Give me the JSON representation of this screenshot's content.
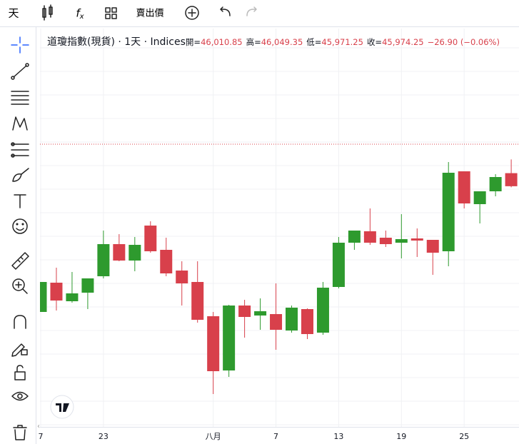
{
  "toolbar": {
    "interval": "天",
    "price_type": "賣出價"
  },
  "chart_data": {
    "type": "candlestick",
    "title": "道瓊指數(現貨) · 1天 · Indices",
    "ohlc_legend": {
      "labels": [
        "開=",
        "高=",
        "低=",
        "收="
      ],
      "values": [
        "46,010.85",
        "46,049.35",
        "45,971.25",
        "45,974.25"
      ],
      "change": "−26.90 (−0.06%)"
    },
    "categories": [
      "7",
      null,
      null,
      null,
      "23",
      null,
      null,
      null,
      null,
      null,
      null,
      "八月",
      null,
      null,
      null,
      "7",
      null,
      null,
      null,
      "13",
      null,
      null,
      null,
      "19",
      null,
      null,
      null,
      "25",
      null,
      null,
      null
    ],
    "open": [
      45622,
      45704,
      45652,
      45676,
      45722,
      45812,
      45766,
      45864,
      45796,
      45738,
      45706,
      45610,
      45458,
      45640,
      45612,
      45616,
      45570,
      45630,
      45564,
      45692,
      45816,
      45848,
      45830,
      45816,
      45828,
      45824,
      45792,
      46016,
      45924,
      45960,
      46010.85
    ],
    "high": [
      45706,
      45746,
      45734,
      45716,
      45850,
      45840,
      45832,
      45876,
      45830,
      45764,
      45764,
      45622,
      45642,
      45656,
      45660,
      45702,
      45640,
      45632,
      45706,
      45832,
      45850,
      45912,
      45850,
      45896,
      45856,
      45824,
      46042,
      46016,
      45960,
      46008,
      46049.35
    ],
    "low": [
      45622,
      45626,
      45648,
      45630,
      45716,
      45764,
      45736,
      45788,
      45722,
      45640,
      45592,
      45392,
      45440,
      45550,
      45572,
      45516,
      45564,
      45546,
      45558,
      45688,
      45796,
      45810,
      45804,
      45772,
      45776,
      45726,
      45750,
      45912,
      45870,
      45946,
      45971.25
    ],
    "close": [
      45706,
      45654,
      45674,
      45716,
      45812,
      45766,
      45810,
      45792,
      45730,
      45702,
      45600,
      45456,
      45640,
      45608,
      45624,
      45572,
      45634,
      45560,
      45690,
      45816,
      45850,
      45816,
      45812,
      45826,
      45822,
      45788,
      46012,
      45926,
      45960,
      46000,
      45974.25
    ],
    "up_color": "#2e9a2e",
    "down_color": "#d8404b",
    "ylim": [
      45296,
      46416
    ],
    "grid": true
  }
}
